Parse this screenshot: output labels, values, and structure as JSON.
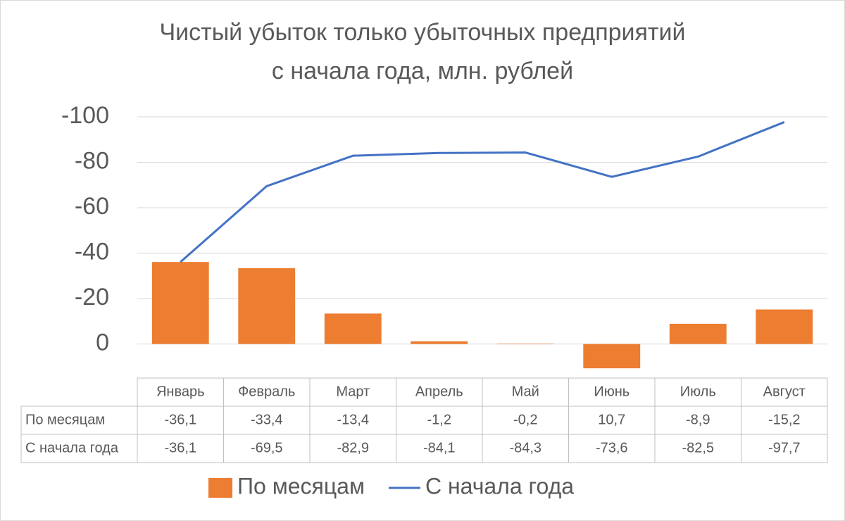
{
  "chart_data": {
    "type": "bar-line",
    "title": [
      "Чистый убыток только убыточных предприятий",
      "с начала года, млн. рублей"
    ],
    "categories": [
      "Январь",
      "Февраль",
      "Март",
      "Апрель",
      "Май",
      "Июнь",
      "Июль",
      "Август"
    ],
    "series": [
      {
        "name": "По месяцам",
        "type": "bar",
        "color": "#ed7d31",
        "values": [
          -36.1,
          -33.4,
          -13.4,
          -1.2,
          -0.2,
          10.7,
          -8.9,
          -15.2
        ],
        "value_labels": [
          "-36,1",
          "-33,4",
          "-13,4",
          "-1,2",
          "-0,2",
          "10,7",
          "-8,9",
          "-15,2"
        ]
      },
      {
        "name": "С начала года",
        "type": "line",
        "color": "#4472c4",
        "values": [
          -36.1,
          -69.5,
          -82.9,
          -84.1,
          -84.3,
          -73.6,
          -82.5,
          -97.7
        ],
        "value_labels": [
          "-36,1",
          "-69,5",
          "-82,9",
          "-84,1",
          "-84,3",
          "-73,6",
          "-82,5",
          "-97,7"
        ]
      }
    ],
    "ylim": [
      -100,
      15
    ],
    "y_inverted": true,
    "yticks": [
      -100,
      -80,
      -60,
      -40,
      -20,
      0
    ],
    "grid": true,
    "legend": "bottom",
    "data_table": true
  }
}
